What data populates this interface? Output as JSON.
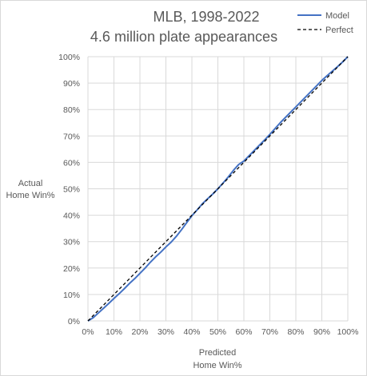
{
  "chart_data": {
    "type": "line",
    "title": "MLB, 1998-2022",
    "subtitle": "4.6 million plate appearances",
    "xlabel": [
      "Predicted",
      "Home Win%"
    ],
    "ylabel": [
      "Actual",
      "Home Win%"
    ],
    "xlim": [
      0,
      1
    ],
    "ylim": [
      0,
      1
    ],
    "xticks": [
      0,
      0.1,
      0.2,
      0.3,
      0.4,
      0.5,
      0.6,
      0.7,
      0.8,
      0.9,
      1.0
    ],
    "yticks": [
      0,
      0.1,
      0.2,
      0.3,
      0.4,
      0.5,
      0.6,
      0.7,
      0.8,
      0.9,
      1.0
    ],
    "xtick_labels": [
      "0%",
      "10%",
      "20%",
      "30%",
      "40%",
      "50%",
      "60%",
      "70%",
      "80%",
      "90%",
      "100%"
    ],
    "ytick_labels": [
      "0%",
      "10%",
      "20%",
      "30%",
      "40%",
      "50%",
      "60%",
      "70%",
      "80%",
      "90%",
      "100%"
    ],
    "grid": true,
    "legend_position": "top-right",
    "series": [
      {
        "name": "Model",
        "color": "#4472c4",
        "style": "solid",
        "x": [
          0,
          0.02,
          0.04,
          0.06,
          0.08,
          0.1,
          0.12,
          0.14,
          0.16,
          0.18,
          0.2,
          0.22,
          0.24,
          0.26,
          0.28,
          0.3,
          0.32,
          0.34,
          0.36,
          0.38,
          0.4,
          0.42,
          0.44,
          0.46,
          0.48,
          0.5,
          0.52,
          0.54,
          0.56,
          0.58,
          0.6,
          0.62,
          0.64,
          0.66,
          0.68,
          0.7,
          0.72,
          0.74,
          0.76,
          0.78,
          0.8,
          0.82,
          0.84,
          0.86,
          0.88,
          0.9,
          0.92,
          0.94,
          0.96,
          0.98,
          1.0
        ],
        "y": [
          0,
          0.012,
          0.03,
          0.048,
          0.066,
          0.085,
          0.103,
          0.122,
          0.142,
          0.16,
          0.18,
          0.2,
          0.222,
          0.242,
          0.26,
          0.28,
          0.298,
          0.32,
          0.345,
          0.372,
          0.398,
          0.42,
          0.443,
          0.462,
          0.48,
          0.5,
          0.522,
          0.545,
          0.57,
          0.592,
          0.605,
          0.625,
          0.645,
          0.665,
          0.685,
          0.706,
          0.728,
          0.75,
          0.77,
          0.79,
          0.81,
          0.83,
          0.85,
          0.87,
          0.89,
          0.91,
          0.928,
          0.945,
          0.962,
          0.98,
          1.0
        ]
      },
      {
        "name": "Perfect",
        "color": "#000000",
        "style": "dashed",
        "x": [
          0,
          1
        ],
        "y": [
          0,
          1
        ]
      }
    ]
  }
}
